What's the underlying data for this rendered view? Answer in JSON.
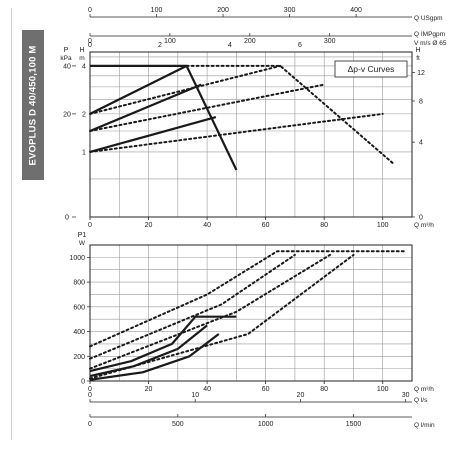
{
  "page": {
    "side_title": "EVOPLUS D 40/450,100 M"
  },
  "chart_data": [
    {
      "type": "line",
      "title": "",
      "legend_title": "Δp-v Curves",
      "x": {
        "label": "Q m³/h",
        "range": [
          0,
          110
        ],
        "ticks": [
          0,
          20,
          40,
          60,
          80,
          100
        ]
      },
      "y_left_kpa": {
        "label": "P kPa",
        "ticks": [
          0,
          20,
          40
        ]
      },
      "y_left_m": {
        "label": "H m",
        "range": [
          0,
          4.8
        ],
        "ticks": [
          1,
          2,
          4
        ],
        "scale": "log"
      },
      "y_right_ft": {
        "label": "H ft",
        "ticks": [
          0,
          4,
          8,
          12
        ]
      },
      "top_axes": [
        {
          "label": "Q USgpm",
          "ticks": [
            "0",
            "100",
            "200",
            "300",
            "400"
          ],
          "range": [
            0,
            484
          ]
        },
        {
          "label": "Q IMPgpm",
          "ticks": [
            "0",
            "100",
            "200",
            "300"
          ],
          "range": [
            0,
            403
          ]
        },
        {
          "label": "V m/s Ø 65",
          "ticks": [
            "0",
            "2",
            "4",
            "6"
          ],
          "range": [
            0,
            9.2
          ]
        }
      ],
      "grid": true,
      "series": [
        {
          "style": "solid",
          "points": [
            [
              0,
              4
            ],
            [
              33,
              4
            ],
            [
              50,
              0.65
            ]
          ]
        },
        {
          "style": "solid",
          "points": [
            [
              0,
              2
            ],
            [
              33,
              4
            ]
          ]
        },
        {
          "style": "solid",
          "points": [
            [
              0,
              1.5
            ],
            [
              38,
              3.1
            ]
          ]
        },
        {
          "style": "solid",
          "points": [
            [
              0,
              1
            ],
            [
              43,
              1.9
            ]
          ]
        },
        {
          "style": "dotted",
          "points": [
            [
              33,
              4
            ],
            [
              65,
              4
            ],
            [
              104,
              0.75
            ]
          ]
        },
        {
          "style": "dotted",
          "points": [
            [
              0,
              2
            ],
            [
              65,
              4
            ]
          ]
        },
        {
          "style": "dotted",
          "points": [
            [
              0,
              1.5
            ],
            [
              80,
              3.1
            ]
          ]
        },
        {
          "style": "dotted",
          "points": [
            [
              0,
              1
            ],
            [
              100,
              2
            ]
          ]
        }
      ]
    },
    {
      "type": "line",
      "title": "",
      "y": {
        "label": "P1 W",
        "range": [
          0,
          1100
        ],
        "ticks": [
          0,
          200,
          400,
          600,
          800,
          1000
        ]
      },
      "x": {
        "label": "Q m³/h",
        "range": [
          0,
          110
        ],
        "ticks": [
          0,
          20,
          40,
          60,
          80,
          100
        ]
      },
      "bottom_axes": [
        {
          "label": "Q l/s",
          "ticks": [
            "0",
            "10",
            "20",
            "30"
          ],
          "range": [
            0,
            30.6
          ]
        },
        {
          "label": "Q l/min",
          "ticks": [
            "0",
            "500",
            "1000",
            "1500"
          ],
          "range": [
            0,
            1833
          ]
        }
      ],
      "grid": true,
      "series": [
        {
          "style": "solid",
          "points": [
            [
              0,
              80
            ],
            [
              14,
              160
            ],
            [
              28,
              300
            ],
            [
              36,
              520
            ],
            [
              50,
              520
            ]
          ]
        },
        {
          "style": "solid",
          "points": [
            [
              0,
              40
            ],
            [
              15,
              120
            ],
            [
              30,
              260
            ],
            [
              40,
              450
            ]
          ]
        },
        {
          "style": "solid",
          "points": [
            [
              0,
              10
            ],
            [
              18,
              70
            ],
            [
              34,
              200
            ],
            [
              44,
              380
            ]
          ]
        },
        {
          "style": "dotted",
          "points": [
            [
              0,
              280
            ],
            [
              40,
              700
            ],
            [
              64,
              1050
            ],
            [
              108,
              1050
            ]
          ]
        },
        {
          "style": "dotted",
          "points": [
            [
              0,
              180
            ],
            [
              45,
              620
            ],
            [
              70,
              1020
            ]
          ]
        },
        {
          "style": "dotted",
          "points": [
            [
              0,
              100
            ],
            [
              50,
              560
            ],
            [
              82,
              1020
            ]
          ]
        },
        {
          "style": "dotted",
          "points": [
            [
              0,
              20
            ],
            [
              54,
              380
            ],
            [
              90,
              1020
            ]
          ]
        }
      ]
    }
  ]
}
